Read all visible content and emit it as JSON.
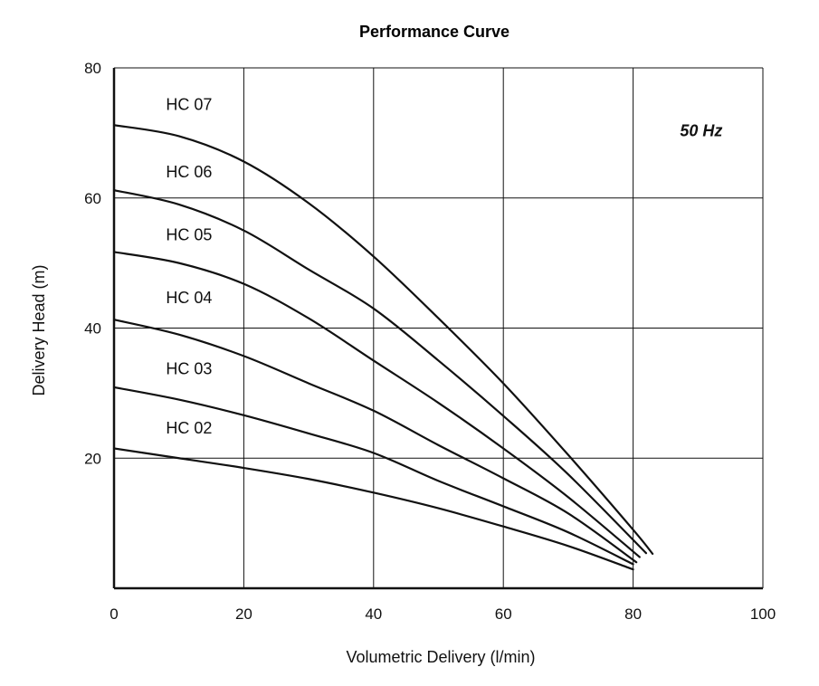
{
  "chart_data": {
    "type": "line",
    "title": "Performance Curve",
    "xlabel": "Volumetric Delivery (l/min)",
    "ylabel": "Delivery Head (m)",
    "annotation": "50 Hz",
    "xlim": [
      0,
      100
    ],
    "ylim": [
      0,
      80
    ],
    "xticks": [
      "0",
      "20",
      "40",
      "60",
      "80",
      "100"
    ],
    "yticks": [
      "20",
      "40",
      "60",
      "80"
    ],
    "grid": true,
    "series": [
      {
        "name": "HC 07",
        "x": [
          0,
          10,
          20,
          30,
          40,
          50,
          60,
          70,
          80,
          83
        ],
        "y": [
          71.2,
          69.5,
          65.6,
          59.2,
          51.0,
          41.5,
          31.5,
          20.5,
          9.0,
          5.3
        ]
      },
      {
        "name": "HC 06",
        "x": [
          0,
          10,
          20,
          30,
          40,
          50,
          60,
          70,
          82
        ],
        "y": [
          61.2,
          59.0,
          55.0,
          49.0,
          43.0,
          35.0,
          26.5,
          17.5,
          5.4
        ]
      },
      {
        "name": "HC 05",
        "x": [
          0,
          10,
          20,
          30,
          40,
          50,
          60,
          70,
          81
        ],
        "y": [
          51.7,
          50.0,
          46.8,
          41.5,
          35.0,
          28.5,
          21.5,
          14.0,
          4.8
        ]
      },
      {
        "name": "HC 04",
        "x": [
          0,
          10,
          20,
          30,
          40,
          50,
          60,
          70,
          80.5
        ],
        "y": [
          41.3,
          39.0,
          35.7,
          31.5,
          27.3,
          22.0,
          16.9,
          11.5,
          4.0
        ]
      },
      {
        "name": "HC 03",
        "x": [
          0,
          10,
          20,
          30,
          40,
          50,
          60,
          70,
          80
        ],
        "y": [
          30.9,
          29.0,
          26.6,
          23.8,
          20.8,
          16.5,
          12.6,
          8.6,
          3.7
        ]
      },
      {
        "name": "HC 02",
        "x": [
          0,
          10,
          20,
          30,
          40,
          50,
          60,
          70,
          80
        ],
        "y": [
          21.5,
          20.0,
          18.5,
          16.8,
          14.7,
          12.3,
          9.5,
          6.5,
          2.9
        ]
      }
    ],
    "series_labels": [
      {
        "name": "HC 07",
        "x": 8,
        "y": 73.5
      },
      {
        "name": "HC 06",
        "x": 8,
        "y": 63.2
      },
      {
        "name": "HC 05",
        "x": 8,
        "y": 53.5
      },
      {
        "name": "HC 04",
        "x": 8,
        "y": 43.8
      },
      {
        "name": "HC 03",
        "x": 8,
        "y": 32.9
      },
      {
        "name": "HC 02",
        "x": 8,
        "y": 23.8
      }
    ],
    "annotation_position": {
      "x": 90.5,
      "y": 69.5
    }
  }
}
